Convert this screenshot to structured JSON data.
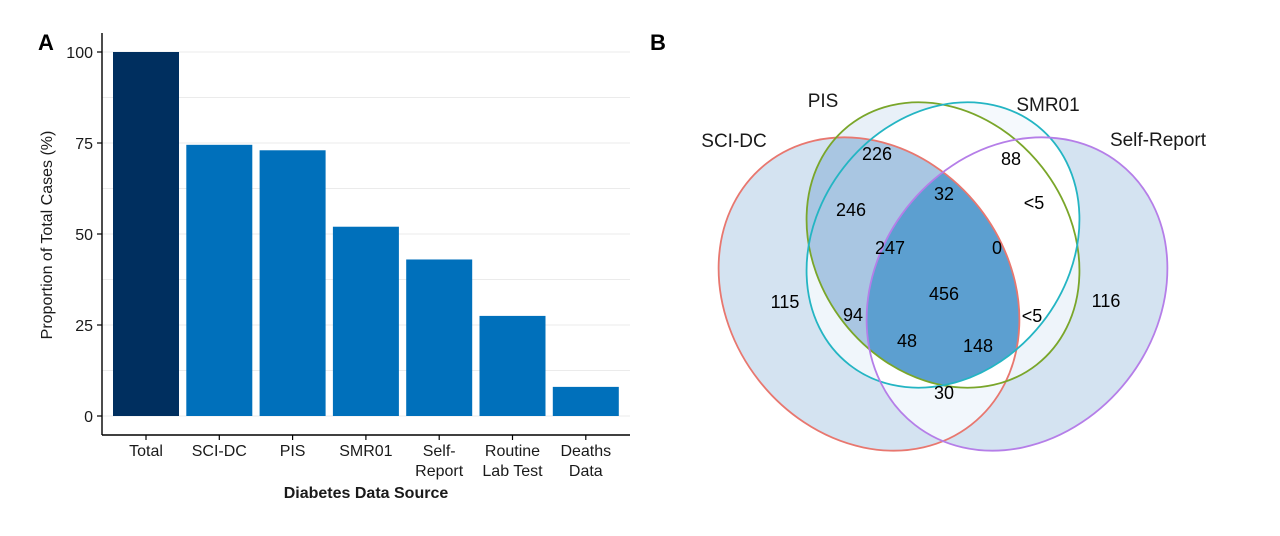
{
  "panels": {
    "a_label": "A",
    "b_label": "B"
  },
  "chart_data": [
    {
      "type": "bar",
      "categories": [
        [
          "Total"
        ],
        [
          "SCI-DC"
        ],
        [
          "PIS"
        ],
        [
          "SMR01"
        ],
        [
          "Self-",
          "Report"
        ],
        [
          "Routine",
          "Lab Test"
        ],
        [
          "Deaths",
          "Data"
        ]
      ],
      "values": [
        100,
        74.5,
        73,
        52,
        43,
        27.5,
        8
      ],
      "title": "",
      "xlabel": "Diabetes Data Source",
      "ylabel": "Proportion of Total Cases (%)",
      "ylim": [
        0,
        100
      ],
      "yticks": [
        0,
        25,
        50,
        75,
        100
      ],
      "grid": true,
      "legend": "none",
      "colors": {
        "highlight": "#002f5f",
        "default": "#0070bb",
        "grid": "#ebebeb"
      }
    },
    {
      "type": "venn",
      "sets": [
        {
          "name": "SCI-DC",
          "color": "#e8776f"
        },
        {
          "name": "PIS",
          "color": "#7aa62a"
        },
        {
          "name": "SMR01",
          "color": "#24b5c3"
        },
        {
          "name": "Self-Report",
          "color": "#b57ee8"
        }
      ],
      "regions": [
        {
          "sets": [
            "PIS"
          ],
          "label": "226"
        },
        {
          "sets": [
            "SMR01"
          ],
          "label": "88"
        },
        {
          "sets": [
            "SCI-DC"
          ],
          "label": "115"
        },
        {
          "sets": [
            "Self-Report"
          ],
          "label": "116"
        },
        {
          "sets": [
            "SCI-DC",
            "PIS"
          ],
          "label": "246"
        },
        {
          "sets": [
            "PIS",
            "SMR01"
          ],
          "label": "32"
        },
        {
          "sets": [
            "SMR01",
            "Self-Report"
          ],
          "label": "<5"
        },
        {
          "sets": [
            "SCI-DC",
            "PIS",
            "SMR01"
          ],
          "label": "247"
        },
        {
          "sets": [
            "PIS",
            "SMR01",
            "Self-Report"
          ],
          "label": "0"
        },
        {
          "sets": [
            "SCI-DC",
            "PIS",
            "SMR01",
            "Self-Report"
          ],
          "label": "456"
        },
        {
          "sets": [
            "SCI-DC",
            "SMR01"
          ],
          "label": "94"
        },
        {
          "sets": [
            "PIS",
            "Self-Report"
          ],
          "label": "<5"
        },
        {
          "sets": [
            "SCI-DC",
            "SMR01",
            "Self-Report"
          ],
          "label": "48"
        },
        {
          "sets": [
            "SCI-DC",
            "PIS",
            "Self-Report"
          ],
          "label": "148"
        },
        {
          "sets": [
            "SCI-DC",
            "Self-Report"
          ],
          "label": "30"
        }
      ]
    }
  ]
}
